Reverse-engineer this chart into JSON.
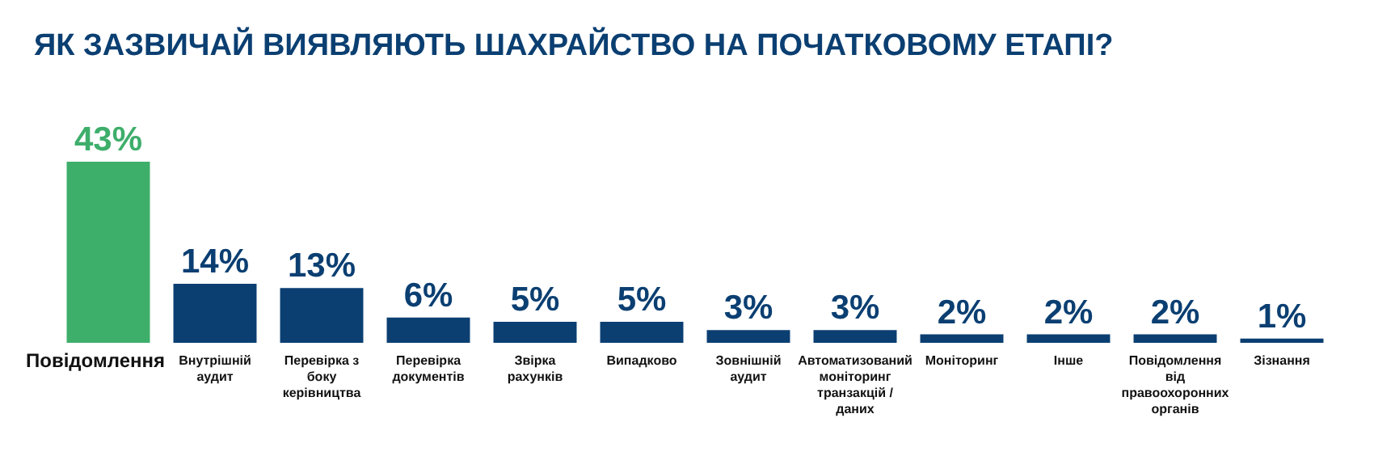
{
  "chart_data": {
    "type": "bar",
    "title": "ЯК ЗАЗВИЧАЙ ВИЯВЛЯЮТЬ ШАХРАЙСТВО НА ПОЧАТКОВОМУ ЕТАПІ?",
    "categories": [
      "Повідомлення",
      "Внутрішній аудит",
      "Перевірка з боку керівництва",
      "Перевірка документів",
      "Звірка рахунків",
      "Випадково",
      "Зовнішній аудит",
      "Автоматизований моніторинг транзакцій / даних",
      "Моніторинг",
      "Інше",
      "Повідомлення від правоохоронних органів",
      "Зізнання"
    ],
    "values": [
      43,
      14,
      13,
      6,
      5,
      5,
      3,
      3,
      2,
      2,
      2,
      1
    ],
    "value_labels": [
      "43%",
      "14%",
      "13%",
      "6%",
      "5%",
      "5%",
      "3%",
      "3%",
      "2%",
      "2%",
      "2%",
      "1%"
    ],
    "colors": [
      "#3eae6b",
      "#0b3f72",
      "#0b3f72",
      "#0b3f72",
      "#0b3f72",
      "#0b3f72",
      "#0b3f72",
      "#0b3f72",
      "#0b3f72",
      "#0b3f72",
      "#0b3f72",
      "#0b3f72"
    ],
    "grid": false
  }
}
